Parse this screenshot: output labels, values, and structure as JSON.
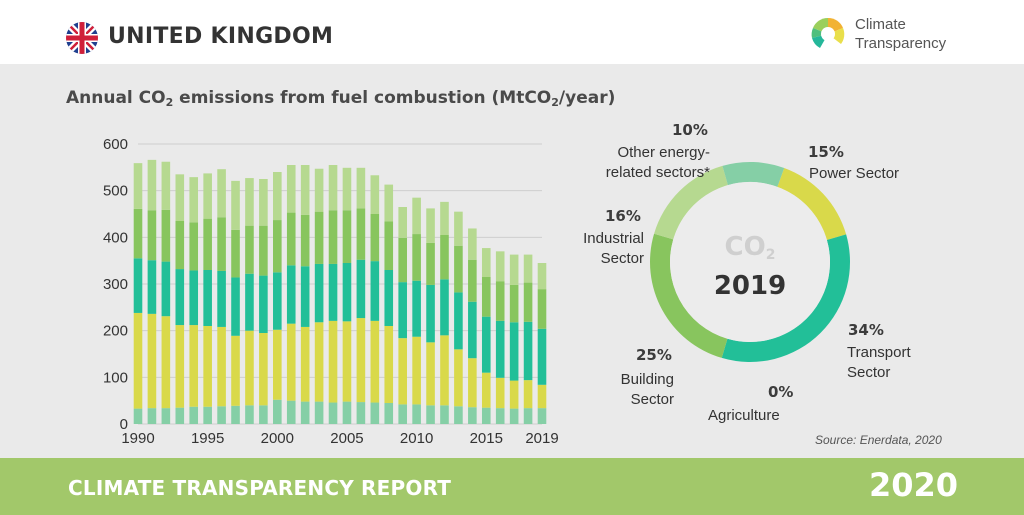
{
  "header": {
    "country": "UNITED KINGDOM",
    "logo_line1": "Climate",
    "logo_line2": "Transparency"
  },
  "footer": {
    "report": "CLIMATE TRANSPARENCY REPORT",
    "year": "2020"
  },
  "colors": {
    "power": "#d9d94a",
    "transport": "#22bf98",
    "building": "#88c55e",
    "industry": "#b6d990",
    "other": "#85cfa6",
    "agriculture": "#5fae74",
    "footer": "#a2c86a"
  },
  "chart_data": [
    {
      "type": "bar",
      "stacked": true,
      "title_pre": "Annual CO",
      "title_sub": "2",
      "title_mid": " emissions from fuel combustion (MtCO",
      "title_sub2": "2",
      "title_post": "/year)",
      "ylim": [
        0,
        600
      ],
      "yticks": [
        0,
        100,
        200,
        300,
        400,
        500,
        600
      ],
      "xtick_labels": [
        "1990",
        "1995",
        "2000",
        "2005",
        "2010",
        "2015",
        "2019"
      ],
      "x": [
        1990,
        1991,
        1992,
        1993,
        1994,
        1995,
        1996,
        1997,
        1998,
        1999,
        2000,
        2001,
        2002,
        2003,
        2004,
        2005,
        2006,
        2007,
        2008,
        2009,
        2010,
        2011,
        2012,
        2013,
        2014,
        2015,
        2016,
        2017,
        2018,
        2019
      ],
      "series": [
        {
          "key": "other",
          "values": [
            33,
            34,
            34,
            35,
            37,
            37,
            38,
            39,
            40,
            40,
            52,
            50,
            48,
            48,
            46,
            48,
            47,
            46,
            45,
            42,
            42,
            40,
            40,
            38,
            36,
            35,
            34,
            33,
            34,
            34
          ]
        },
        {
          "key": "power",
          "values": [
            205,
            202,
            197,
            177,
            175,
            173,
            170,
            150,
            160,
            155,
            150,
            165,
            160,
            170,
            175,
            172,
            180,
            175,
            165,
            142,
            145,
            135,
            150,
            122,
            105,
            75,
            65,
            60,
            60,
            50
          ]
        },
        {
          "key": "transport",
          "values": [
            117,
            115,
            117,
            120,
            117,
            120,
            120,
            125,
            122,
            123,
            123,
            125,
            130,
            125,
            122,
            125,
            125,
            128,
            120,
            120,
            120,
            123,
            120,
            122,
            121,
            120,
            122,
            125,
            125,
            120
          ]
        },
        {
          "key": "building",
          "values": [
            106,
            107,
            111,
            103,
            103,
            110,
            115,
            102,
            103,
            107,
            112,
            113,
            110,
            112,
            115,
            113,
            110,
            101,
            104,
            95,
            100,
            90,
            95,
            100,
            90,
            85,
            85,
            80,
            84,
            85
          ]
        },
        {
          "key": "industry",
          "values": [
            98,
            108,
            103,
            100,
            97,
            97,
            103,
            105,
            102,
            100,
            103,
            102,
            107,
            92,
            97,
            91,
            87,
            83,
            79,
            66,
            78,
            74,
            71,
            73,
            67,
            62,
            64,
            65,
            60,
            56
          ]
        }
      ]
    },
    {
      "type": "pie",
      "center_label": "CO",
      "center_sub": "2",
      "center_year": "2019",
      "slices": [
        {
          "key": "power",
          "label": "Power Sector",
          "value": 15,
          "pct": "15%"
        },
        {
          "key": "transport",
          "label": "Transport Sector",
          "value": 34,
          "pct": "34%"
        },
        {
          "key": "agriculture",
          "label": "Agriculture",
          "value": 0,
          "pct": "0%"
        },
        {
          "key": "building",
          "label": "Building Sector",
          "value": 25,
          "pct": "25%"
        },
        {
          "key": "industry",
          "label": "Industrial Sector",
          "value": 16,
          "pct": "16%"
        },
        {
          "key": "other",
          "label": "Other energy-related sectors*",
          "value": 10,
          "pct": "10%"
        }
      ],
      "source": "Source: Enerdata, 2020"
    }
  ]
}
